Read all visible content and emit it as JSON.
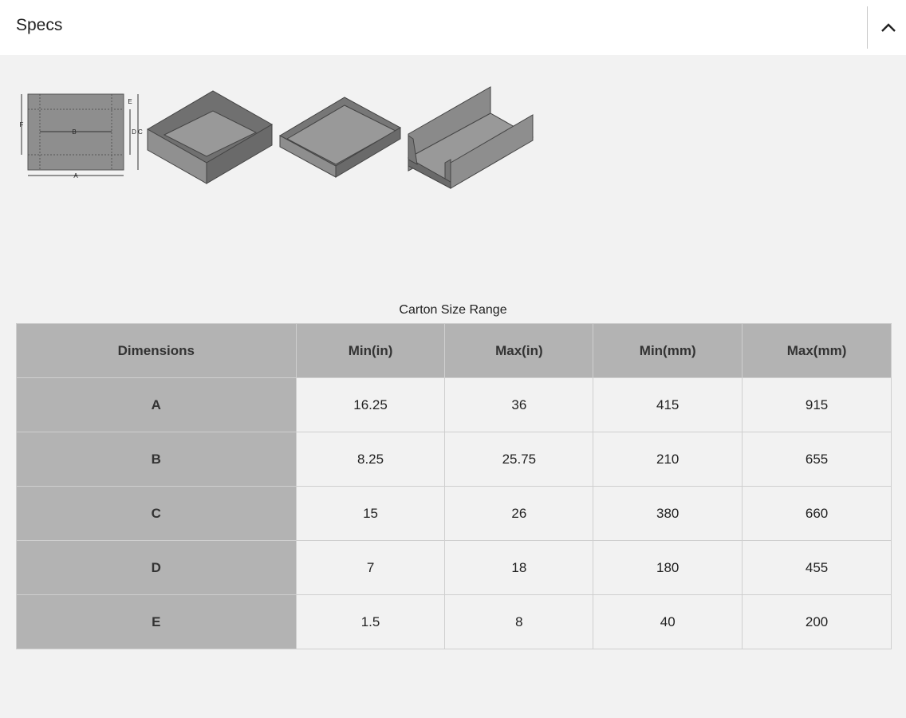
{
  "header": {
    "title": "Specs",
    "toggle_icon": "chevron-up-icon"
  },
  "diagram": {
    "labels": [
      "A",
      "B",
      "C",
      "D",
      "E",
      "F"
    ]
  },
  "table": {
    "caption": "Carton Size Range",
    "columns": [
      "Dimensions",
      "Min(in)",
      "Max(in)",
      "Min(mm)",
      "Max(mm)"
    ],
    "rows": [
      [
        "A",
        "16.25",
        "36",
        "415",
        "915"
      ],
      [
        "B",
        "8.25",
        "25.75",
        "210",
        "655"
      ],
      [
        "C",
        "15",
        "26",
        "380",
        "660"
      ],
      [
        "D",
        "7",
        "18",
        "180",
        "455"
      ],
      [
        "E",
        "1.5",
        "8",
        "40",
        "200"
      ]
    ]
  },
  "colors": {
    "header_cell": "#b3b3b3",
    "body_cell": "#f2f2f2",
    "carton": "#8e8e8e"
  }
}
